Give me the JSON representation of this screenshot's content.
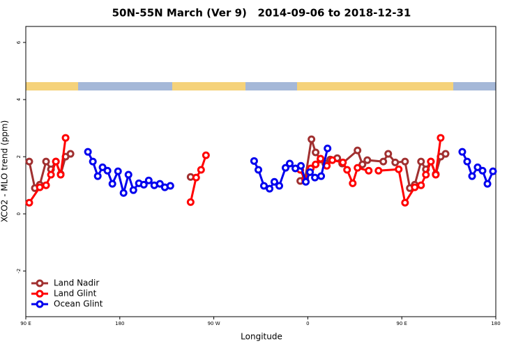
{
  "chart_data": {
    "type": "line",
    "title": "50N-55N March (Ver 9)   2014-09-06 to 2018-12-31",
    "x_label": "Longitude",
    "y_label": "XCO2 - MLO trend (ppm)",
    "xlim": [
      90,
      540
    ],
    "xticks": [
      {
        "value": 90,
        "label": "90 E"
      },
      {
        "value": 180,
        "label": "180"
      },
      {
        "value": 270,
        "label": "90 W"
      },
      {
        "value": 360,
        "label": "0"
      },
      {
        "value": 450,
        "label": "90 E"
      },
      {
        "value": 540,
        "label": "180"
      }
    ],
    "ylim": [
      -3.6,
      6.56
    ],
    "yticks": [
      -2,
      0,
      2,
      4,
      6
    ],
    "legend": "bottom-left",
    "series": [
      {
        "name": "Land Nadir",
        "color": "#a03030",
        "x": [
          93.3,
          98.7,
          103.4,
          109.4,
          114.1,
          118.8,
          123.4,
          128.1,
          132.8,
          null,
          247.8,
          null,
          352.8,
          357.5,
          363.5,
          367.5,
          372.2,
          376.8,
          381.5,
          388.2,
          392.9,
          407.6,
          412.3,
          417.0,
          432.3,
          437.0,
          443.7,
          453.1,
          457.7,
          462.4,
          468.4,
          473.1,
          477.8,
          482.5,
          487.2,
          491.9
        ],
        "values": [
          1.83,
          0.9,
          1.02,
          1.83,
          1.56,
          1.83,
          1.39,
          2.0,
          2.1,
          null,
          1.29,
          null,
          1.15,
          1.24,
          2.61,
          2.15,
          1.9,
          1.76,
          1.9,
          1.95,
          1.76,
          2.22,
          1.73,
          1.88,
          1.83,
          2.1,
          1.8,
          1.83,
          0.9,
          1.02,
          1.83,
          1.56,
          1.83,
          1.39,
          2.0,
          2.1
        ]
      },
      {
        "name": "Land Glint",
        "color": "#ff0000",
        "x": [
          93.3,
          103.4,
          109.4,
          114.1,
          118.8,
          123.4,
          128.1,
          null,
          247.8,
          253.1,
          257.8,
          262.5,
          null,
          352.8,
          357.5,
          362.8,
          367.5,
          372.2,
          378.2,
          383.5,
          393.6,
          397.6,
          403.0,
          407.6,
          418.3,
          null,
          427.7,
          447.0,
          453.1,
          462.4,
          468.4,
          473.1,
          477.8,
          482.5,
          487.2
        ],
        "values": [
          0.39,
          0.93,
          1.0,
          1.37,
          1.83,
          1.37,
          2.66,
          null,
          0.41,
          1.27,
          1.54,
          2.05,
          null,
          1.54,
          1.17,
          1.59,
          1.73,
          1.93,
          1.68,
          1.88,
          1.8,
          1.54,
          1.07,
          1.61,
          1.51,
          null,
          1.51,
          1.56,
          0.39,
          0.93,
          1.0,
          1.37,
          1.83,
          1.37,
          2.66
        ]
      },
      {
        "name": "Ocean Glint",
        "color": "#0000ee",
        "x": [
          149.5,
          154.2,
          158.9,
          163.5,
          168.2,
          172.9,
          178.3,
          183.6,
          188.3,
          193.0,
          198.3,
          203.0,
          207.7,
          213.0,
          218.4,
          223.1,
          228.4,
          null,
          308.6,
          312.7,
          318.0,
          323.4,
          328.0,
          332.7,
          338.7,
          342.7,
          348.1,
          353.4,
          358.1,
          362.1,
          366.8,
          372.8,
          378.9,
          null,
          507.9,
          512.6,
          517.3,
          522.6,
          527.3,
          532.0,
          537.3
        ],
        "values": [
          2.17,
          1.83,
          1.32,
          1.63,
          1.51,
          1.05,
          1.49,
          0.73,
          1.37,
          0.83,
          1.07,
          1.02,
          1.17,
          1.0,
          1.05,
          0.93,
          0.98,
          null,
          1.85,
          1.54,
          0.98,
          0.88,
          1.12,
          0.98,
          1.61,
          1.76,
          1.59,
          1.68,
          1.12,
          1.46,
          1.27,
          1.32,
          2.29,
          null,
          2.17,
          1.83,
          1.32,
          1.63,
          1.51,
          1.05,
          1.49
        ]
      }
    ]
  }
}
